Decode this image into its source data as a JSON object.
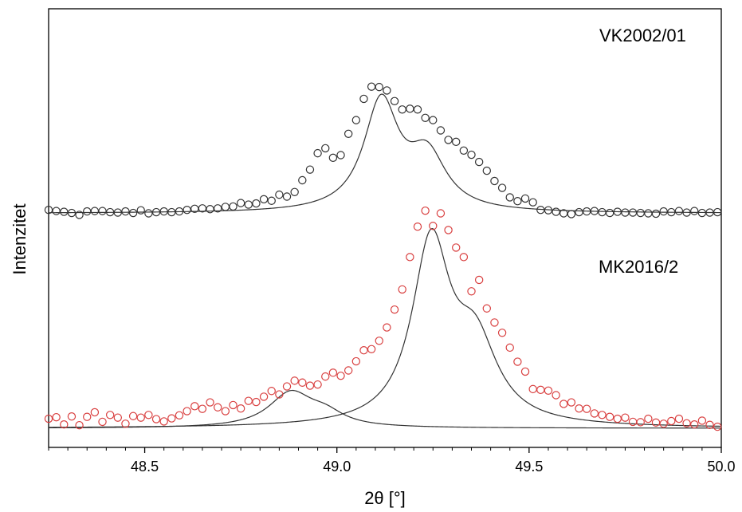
{
  "chart_data": {
    "type": "scatter",
    "title": "",
    "xlabel": "2θ [°]",
    "ylabel": "Intenzitet",
    "xlim": [
      48.25,
      50.0
    ],
    "ylim": [
      0,
      1
    ],
    "xticks": [
      48.5,
      49.0,
      49.5,
      50.0
    ],
    "xtick_labels": [
      "48.5",
      "49.0",
      "49.5",
      "50.0"
    ],
    "y_ticks_shown": false,
    "grid": false,
    "series": [
      {
        "name": "VK2002/01",
        "marker": "open-circle",
        "color": "#333333",
        "x": [
          48.25,
          48.27,
          48.29,
          48.31,
          48.33,
          48.35,
          48.37,
          48.39,
          48.41,
          48.43,
          48.45,
          48.47,
          48.49,
          48.51,
          48.53,
          48.55,
          48.57,
          48.59,
          48.61,
          48.63,
          48.65,
          48.67,
          48.69,
          48.71,
          48.73,
          48.75,
          48.77,
          48.79,
          48.81,
          48.83,
          48.85,
          48.87,
          48.89,
          48.91,
          48.93,
          48.95,
          48.97,
          48.99,
          49.01,
          49.03,
          49.05,
          49.07,
          49.09,
          49.11,
          49.13,
          49.15,
          49.17,
          49.19,
          49.21,
          49.23,
          49.25,
          49.27,
          49.29,
          49.31,
          49.33,
          49.35,
          49.37,
          49.39,
          49.41,
          49.43,
          49.45,
          49.47,
          49.49,
          49.51,
          49.53,
          49.55,
          49.57,
          49.59,
          49.61,
          49.63,
          49.65,
          49.67,
          49.69,
          49.71,
          49.73,
          49.75,
          49.77,
          49.79,
          49.81,
          49.83,
          49.85,
          49.87,
          49.89,
          49.91,
          49.93,
          49.95,
          49.97,
          49.99
        ],
        "y": [
          0.574,
          0.571,
          0.569,
          0.566,
          0.561,
          0.57,
          0.571,
          0.571,
          0.568,
          0.567,
          0.57,
          0.566,
          0.573,
          0.565,
          0.568,
          0.57,
          0.568,
          0.57,
          0.574,
          0.577,
          0.578,
          0.576,
          0.578,
          0.582,
          0.583,
          0.592,
          0.588,
          0.591,
          0.602,
          0.598,
          0.614,
          0.609,
          0.621,
          0.652,
          0.68,
          0.723,
          0.736,
          0.711,
          0.718,
          0.774,
          0.81,
          0.866,
          0.898,
          0.897,
          0.888,
          0.86,
          0.838,
          0.84,
          0.838,
          0.816,
          0.81,
          0.783,
          0.758,
          0.753,
          0.73,
          0.719,
          0.7,
          0.677,
          0.65,
          0.632,
          0.607,
          0.597,
          0.604,
          0.594,
          0.574,
          0.573,
          0.569,
          0.565,
          0.563,
          0.568,
          0.57,
          0.571,
          0.568,
          0.566,
          0.569,
          0.567,
          0.567,
          0.566,
          0.565,
          0.564,
          0.57,
          0.568,
          0.571,
          0.567,
          0.571,
          0.566,
          0.567,
          0.568
        ]
      },
      {
        "name": "MK2016/2",
        "marker": "open-circle",
        "color": "#d94040",
        "x": [
          48.25,
          48.27,
          48.29,
          48.31,
          48.33,
          48.35,
          48.37,
          48.39,
          48.41,
          48.43,
          48.45,
          48.47,
          48.49,
          48.51,
          48.53,
          48.55,
          48.57,
          48.59,
          48.61,
          48.63,
          48.65,
          48.67,
          48.69,
          48.71,
          48.73,
          48.75,
          48.77,
          48.79,
          48.81,
          48.83,
          48.85,
          48.87,
          48.89,
          48.91,
          48.93,
          48.95,
          48.97,
          48.99,
          49.01,
          49.03,
          49.05,
          49.07,
          49.09,
          49.11,
          49.13,
          49.15,
          49.17,
          49.19,
          49.21,
          49.23,
          49.25,
          49.27,
          49.29,
          49.31,
          49.33,
          49.35,
          49.37,
          49.39,
          49.41,
          49.43,
          49.45,
          49.47,
          49.49,
          49.51,
          49.53,
          49.55,
          49.57,
          49.59,
          49.61,
          49.63,
          49.65,
          49.67,
          49.69,
          49.71,
          49.73,
          49.75,
          49.77,
          49.79,
          49.81,
          49.83,
          49.85,
          49.87,
          49.89,
          49.91,
          49.93,
          49.95,
          49.97,
          49.99
        ],
        "y": [
          0.025,
          0.029,
          0.01,
          0.031,
          0.008,
          0.03,
          0.042,
          0.017,
          0.035,
          0.028,
          0.012,
          0.032,
          0.028,
          0.035,
          0.024,
          0.018,
          0.026,
          0.034,
          0.045,
          0.058,
          0.051,
          0.068,
          0.055,
          0.045,
          0.061,
          0.052,
          0.072,
          0.069,
          0.083,
          0.098,
          0.089,
          0.11,
          0.125,
          0.12,
          0.112,
          0.115,
          0.136,
          0.146,
          0.138,
          0.152,
          0.176,
          0.205,
          0.208,
          0.23,
          0.265,
          0.312,
          0.365,
          0.45,
          0.53,
          0.572,
          0.532,
          0.565,
          0.521,
          0.475,
          0.45,
          0.36,
          0.39,
          0.315,
          0.278,
          0.251,
          0.212,
          0.175,
          0.149,
          0.103,
          0.101,
          0.099,
          0.087,
          0.064,
          0.068,
          0.052,
          0.051,
          0.039,
          0.035,
          0.03,
          0.025,
          0.028,
          0.017,
          0.016,
          0.025,
          0.015,
          0.012,
          0.019,
          0.025,
          0.013,
          0.01,
          0.02,
          0.009,
          0.004
        ]
      }
    ],
    "fit_curves": [
      {
        "series": "VK2002/01",
        "baseline": 0.565,
        "peaks": [
          {
            "center": 49.115,
            "amplitude": 0.285,
            "hwhm": 0.055
          },
          {
            "center": 49.235,
            "amplitude": 0.14,
            "hwhm": 0.06
          }
        ]
      },
      {
        "series": "MK2016/2",
        "baseline": 0.0,
        "components": [
          {
            "peaks": [
              {
                "center": 48.88,
                "amplitude": 0.09,
                "hwhm": 0.07
              },
              {
                "center": 48.97,
                "amplitude": 0.03,
                "hwhm": 0.06
              }
            ]
          },
          {
            "peaks": [
              {
                "center": 49.245,
                "amplitude": 0.47,
                "hwhm": 0.06
              },
              {
                "center": 49.36,
                "amplitude": 0.2,
                "hwhm": 0.07
              }
            ]
          }
        ]
      }
    ],
    "annotations": [
      {
        "text": "VK2002/01",
        "near": "upper-right"
      },
      {
        "text": "MK2016/2",
        "near": "middle-right"
      }
    ]
  }
}
